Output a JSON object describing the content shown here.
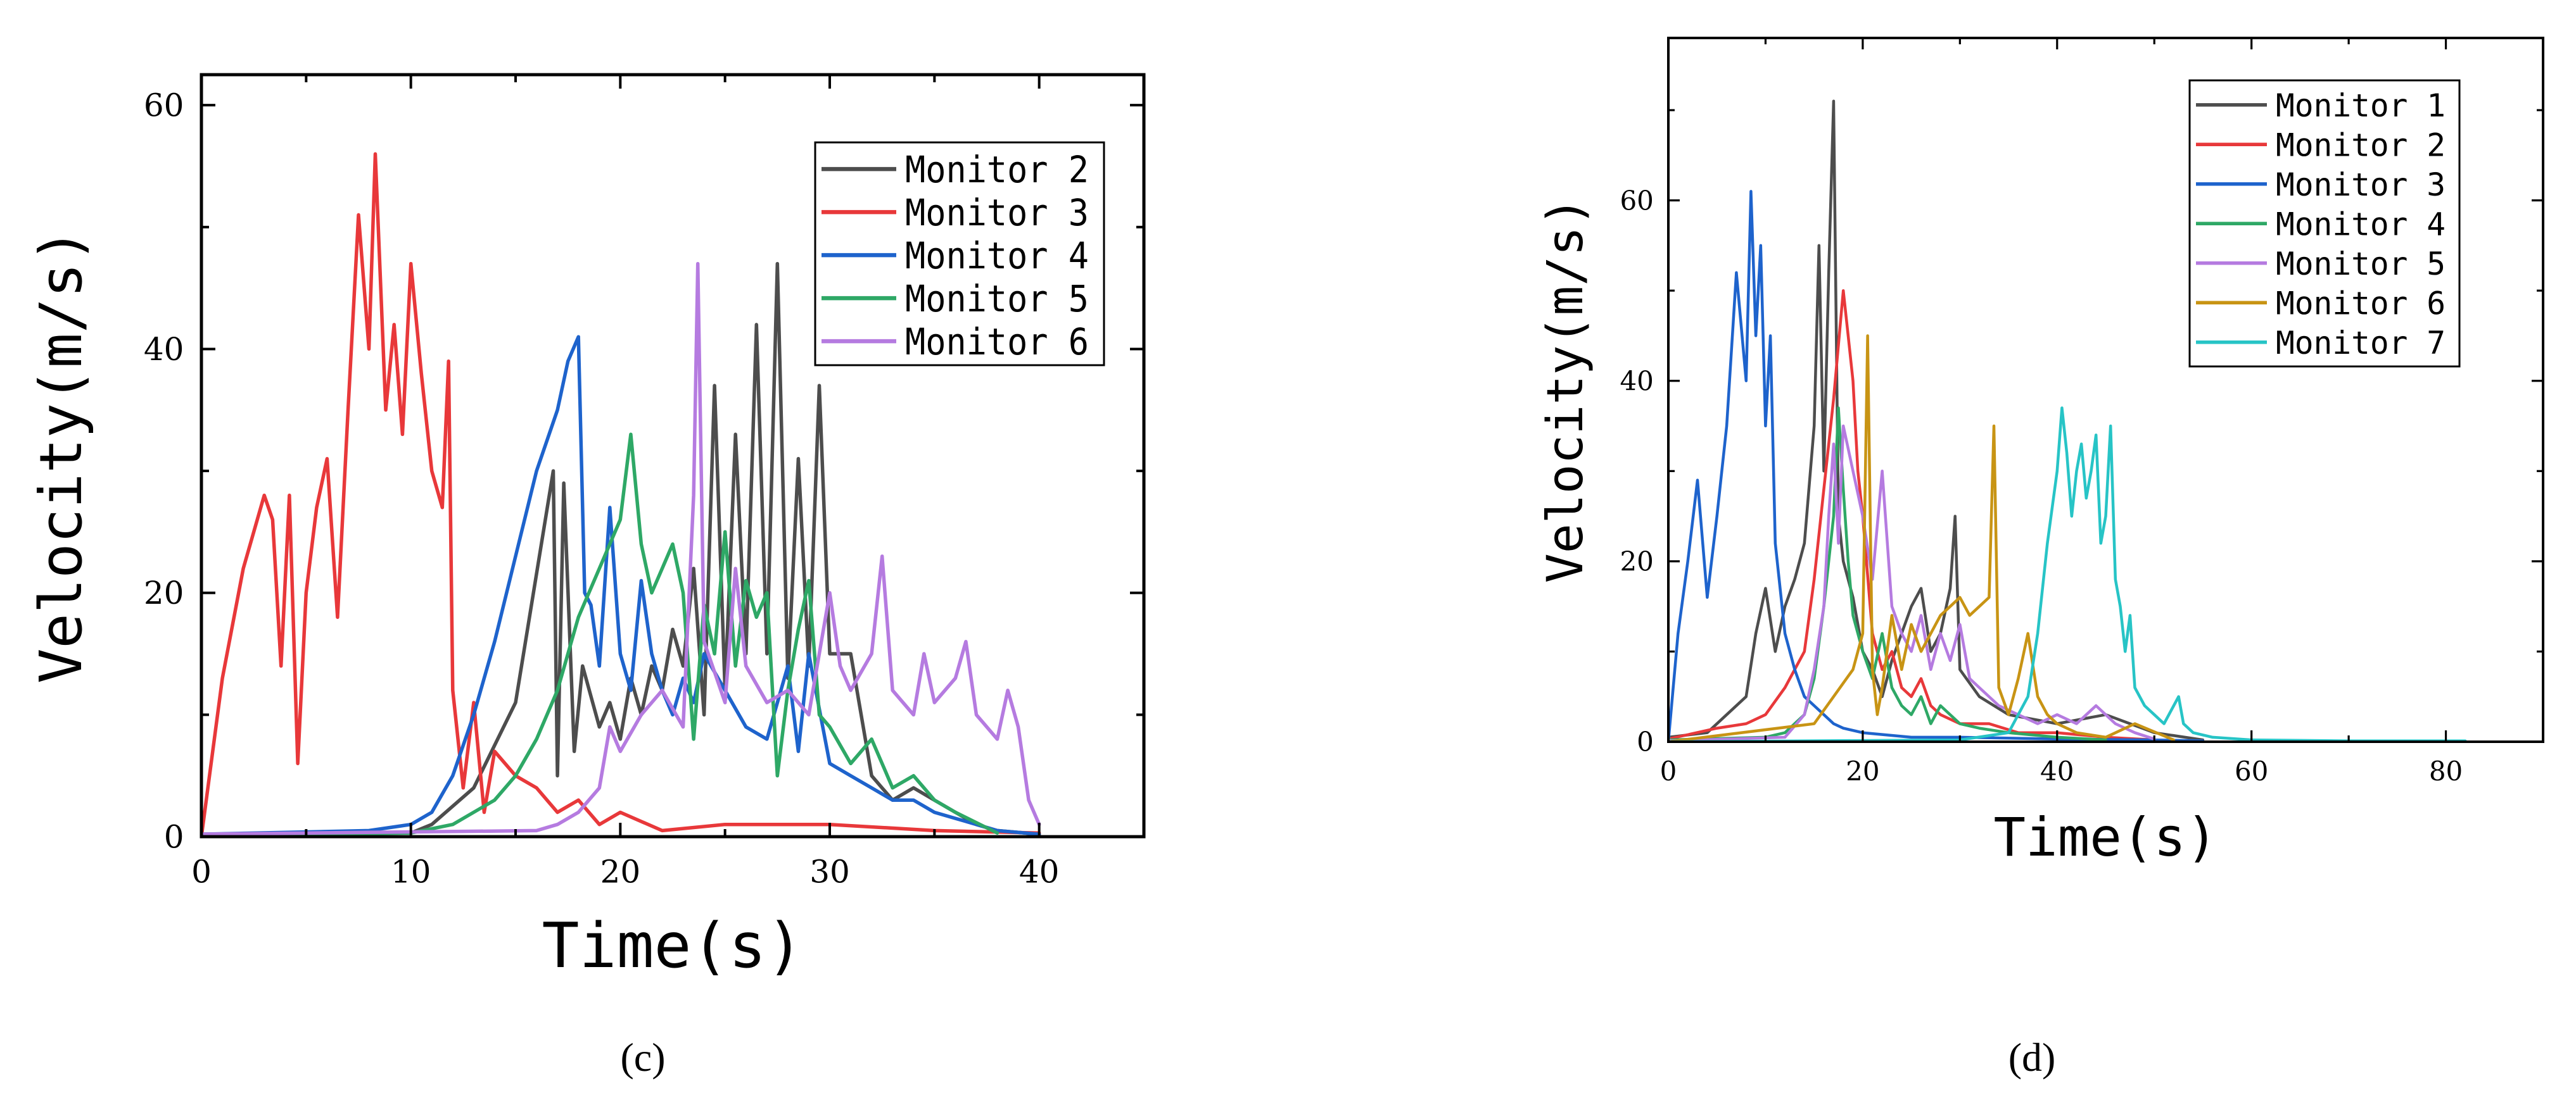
{
  "chart_data": [
    {
      "id": "c",
      "type": "line",
      "panel_label": "(c)",
      "title": "",
      "xlabel": "Time(s)",
      "ylabel": "Velocity(m/s)",
      "xlim": [
        0,
        45
      ],
      "ylim": [
        0,
        62.5
      ],
      "xticks": [
        0,
        10,
        20,
        30,
        40
      ],
      "yticks": [
        0,
        20,
        40,
        60
      ],
      "legend_position": "top-right",
      "series": [
        {
          "name": "Monitor 2",
          "color": "#4d4d4d",
          "x": [
            0,
            10,
            11,
            13,
            15,
            16.8,
            17,
            17.3,
            17.8,
            18.2,
            19,
            19.5,
            20,
            20.5,
            21,
            21.5,
            22,
            22.5,
            23,
            23.5,
            24,
            24.5,
            25,
            25.5,
            26,
            26.5,
            27,
            27.5,
            28,
            28.5,
            29,
            29.5,
            30,
            31,
            32,
            33,
            34,
            35,
            36,
            37,
            38,
            40
          ],
          "y": [
            0.2,
            0.3,
            1,
            4,
            11,
            30,
            5,
            29,
            7,
            14,
            9,
            11,
            8,
            13,
            10,
            14,
            12,
            17,
            14,
            22,
            10,
            37,
            12,
            33,
            15,
            42,
            15,
            47,
            13,
            31,
            14,
            37,
            15,
            15,
            5,
            3,
            4,
            3,
            2,
            1,
            0.5,
            0.2
          ]
        },
        {
          "name": "Monitor 3",
          "color": "#e8383a",
          "x": [
            0,
            1,
            2,
            3,
            3.4,
            3.8,
            4.2,
            4.6,
            5,
            5.5,
            6,
            6.5,
            7,
            7.5,
            8,
            8.3,
            8.8,
            9.2,
            9.6,
            10,
            10.5,
            11,
            11.5,
            11.8,
            12,
            12.5,
            13,
            13.5,
            14,
            15,
            16,
            17,
            18,
            19,
            20,
            22,
            25,
            30,
            35,
            40
          ],
          "y": [
            0,
            13,
            22,
            28,
            26,
            14,
            28,
            6,
            20,
            27,
            31,
            18,
            35,
            51,
            40,
            56,
            35,
            42,
            33,
            47,
            38,
            30,
            27,
            39,
            12,
            4,
            11,
            2,
            7,
            5,
            4,
            2,
            3,
            1,
            2,
            0.5,
            1,
            1,
            0.5,
            0.3
          ]
        },
        {
          "name": "Monitor 4",
          "color": "#1e63cc",
          "x": [
            0,
            8,
            10,
            11,
            12,
            13,
            14,
            15,
            16,
            17,
            17.5,
            18,
            18.3,
            18.6,
            19,
            19.5,
            20,
            20.5,
            21,
            21.5,
            22,
            22.5,
            23,
            23.5,
            24,
            25,
            26,
            27,
            28,
            28.5,
            29,
            30,
            31,
            32,
            33,
            34,
            35,
            36,
            37,
            38,
            40
          ],
          "y": [
            0.2,
            0.5,
            1,
            2,
            5,
            10,
            16,
            23,
            30,
            35,
            39,
            41,
            20,
            19,
            14,
            27,
            15,
            12,
            21,
            15,
            12,
            10,
            13,
            11,
            15,
            12,
            9,
            8,
            14,
            7,
            15,
            6,
            5,
            4,
            3,
            3,
            2,
            1.5,
            1,
            0.5,
            0.2
          ]
        },
        {
          "name": "Monitor 5",
          "color": "#2ea866",
          "x": [
            0,
            10,
            12,
            14,
            15,
            16,
            17,
            18,
            19,
            20,
            20.5,
            21,
            21.5,
            22,
            22.5,
            23,
            23.5,
            24,
            24.5,
            25,
            25.5,
            26,
            26.5,
            27,
            27.5,
            28,
            28.5,
            29,
            29.5,
            30,
            31,
            32,
            33,
            34,
            35,
            36,
            38
          ],
          "y": [
            0.1,
            0.3,
            1,
            3,
            5,
            8,
            12,
            18,
            22,
            26,
            33,
            24,
            20,
            22,
            24,
            20,
            8,
            19,
            15,
            25,
            14,
            21,
            18,
            20,
            5,
            12,
            17,
            21,
            10,
            9,
            6,
            8,
            4,
            5,
            3,
            2,
            0.3
          ]
        },
        {
          "name": "Monitor 6",
          "color": "#b57be0",
          "x": [
            0,
            16,
            17,
            18,
            19,
            19.5,
            20,
            21,
            22,
            23,
            23.5,
            23.7,
            24,
            25,
            25.5,
            26,
            27,
            28,
            29,
            30,
            30.5,
            31,
            32,
            32.5,
            33,
            34,
            34.5,
            35,
            36,
            36.5,
            37,
            38,
            38.5,
            39,
            39.5,
            40
          ],
          "y": [
            0.2,
            0.5,
            1,
            2,
            4,
            9,
            7,
            10,
            12,
            9,
            28,
            47,
            16,
            11,
            22,
            14,
            11,
            12,
            10,
            20,
            14,
            12,
            15,
            23,
            12,
            10,
            15,
            11,
            13,
            16,
            10,
            8,
            12,
            9,
            3,
            1
          ]
        }
      ]
    },
    {
      "id": "d",
      "type": "line",
      "panel_label": "(d)",
      "title": "",
      "xlabel": "Time(s)",
      "ylabel": "Velocity(m/s)",
      "xlim": [
        0,
        90
      ],
      "ylim": [
        0,
        78
      ],
      "xticks": [
        0,
        20,
        40,
        60,
        80
      ],
      "yticks": [
        0,
        20,
        40,
        60
      ],
      "legend_position": "top-right",
      "series": [
        {
          "name": "Monitor 1",
          "color": "#4d4d4d",
          "x": [
            0,
            4,
            6,
            8,
            9,
            10,
            11,
            12,
            13,
            14,
            15,
            15.5,
            16,
            16.5,
            17,
            17.5,
            18,
            19,
            20,
            21,
            22,
            23,
            24,
            25,
            26,
            27,
            28,
            29,
            29.5,
            30,
            32,
            35,
            40,
            45,
            50,
            55
          ],
          "y": [
            0.5,
            1,
            3,
            5,
            12,
            17,
            10,
            15,
            18,
            22,
            35,
            55,
            30,
            52,
            71,
            25,
            20,
            16,
            10,
            8,
            5,
            9,
            12,
            15,
            17,
            10,
            12,
            17,
            25,
            8,
            5,
            3,
            2,
            3,
            1,
            0.2
          ]
        },
        {
          "name": "Monitor 2",
          "color": "#e8383a",
          "x": [
            0,
            5,
            8,
            10,
            12,
            14,
            15,
            16,
            17,
            18,
            18.5,
            19,
            19.5,
            20,
            21,
            22,
            23,
            24,
            25,
            26,
            27,
            28,
            30,
            33,
            36,
            40,
            45,
            50
          ],
          "y": [
            0.3,
            1.5,
            2,
            3,
            6,
            10,
            18,
            28,
            38,
            50,
            45,
            40,
            30,
            25,
            12,
            8,
            10,
            6,
            5,
            7,
            4,
            3,
            2,
            2,
            1,
            1,
            0.5,
            0.2
          ]
        },
        {
          "name": "Monitor 3",
          "color": "#1e63cc",
          "x": [
            0,
            1,
            2,
            3,
            4,
            5,
            6,
            7,
            8,
            8.5,
            9,
            9.5,
            10,
            10.5,
            11,
            12,
            13,
            14,
            15,
            16,
            17,
            18,
            20,
            25,
            30,
            40,
            50,
            55
          ],
          "y": [
            0,
            12,
            20,
            29,
            16,
            25,
            35,
            52,
            40,
            61,
            45,
            55,
            35,
            45,
            22,
            12,
            8,
            5,
            4,
            3,
            2,
            1.5,
            1,
            0.5,
            0.5,
            0.3,
            0.2,
            0.1
          ]
        },
        {
          "name": "Monitor 4",
          "color": "#2ea866",
          "x": [
            0,
            10,
            12,
            14,
            15,
            16,
            17,
            17.5,
            18,
            18.5,
            19,
            20,
            21,
            22,
            23,
            24,
            25,
            26,
            27,
            28,
            30,
            32,
            35,
            40,
            45
          ],
          "y": [
            0.2,
            0.5,
            1,
            3,
            7,
            15,
            25,
            37,
            28,
            20,
            14,
            10,
            7,
            12,
            6,
            4,
            3,
            5,
            2,
            4,
            2,
            1.5,
            1,
            0.5,
            0.2
          ]
        },
        {
          "name": "Monitor 5",
          "color": "#b57be0",
          "x": [
            0,
            12,
            14,
            15,
            16,
            16.5,
            17,
            17.5,
            18,
            19,
            20,
            21,
            22,
            23,
            24,
            25,
            26,
            27,
            28,
            29,
            30,
            31,
            32,
            34,
            36,
            38,
            40,
            42,
            44,
            46,
            48,
            50
          ],
          "y": [
            0.1,
            0.5,
            3,
            8,
            15,
            25,
            33,
            22,
            35,
            30,
            25,
            18,
            30,
            15,
            12,
            10,
            14,
            8,
            12,
            9,
            13,
            7,
            6,
            4,
            3,
            2,
            3,
            2,
            4,
            2,
            1,
            0.3
          ]
        },
        {
          "name": "Monitor 6",
          "color": "#c89414",
          "x": [
            0,
            15,
            17,
            19,
            20,
            20.5,
            21,
            21.5,
            22,
            23,
            24,
            25,
            26,
            27,
            28,
            29,
            30,
            31,
            32,
            33,
            33.5,
            34,
            35,
            36,
            37,
            38,
            39,
            40,
            42,
            45,
            48,
            52
          ],
          "y": [
            0,
            2,
            5,
            8,
            12,
            45,
            8,
            3,
            6,
            14,
            8,
            13,
            10,
            12,
            14,
            15,
            16,
            14,
            15,
            16,
            35,
            6,
            3,
            7,
            12,
            5,
            3,
            2,
            1,
            0.5,
            2,
            0.2
          ]
        },
        {
          "name": "Monitor 7",
          "color": "#27c4c6",
          "x": [
            0,
            30,
            35,
            37,
            38,
            39,
            40,
            40.5,
            41,
            41.5,
            42,
            42.5,
            43,
            43.5,
            44,
            44.5,
            45,
            45.5,
            46,
            46.5,
            47,
            47.5,
            48,
            49,
            50,
            51,
            52,
            52.5,
            53,
            54,
            56,
            60,
            70,
            82
          ],
          "y": [
            0,
            0.2,
            1,
            5,
            12,
            22,
            30,
            37,
            32,
            25,
            30,
            33,
            27,
            30,
            34,
            22,
            25,
            35,
            18,
            15,
            10,
            14,
            6,
            4,
            3,
            2,
            4,
            5,
            2,
            1,
            0.5,
            0.2,
            0.1,
            0.1
          ]
        }
      ]
    }
  ]
}
